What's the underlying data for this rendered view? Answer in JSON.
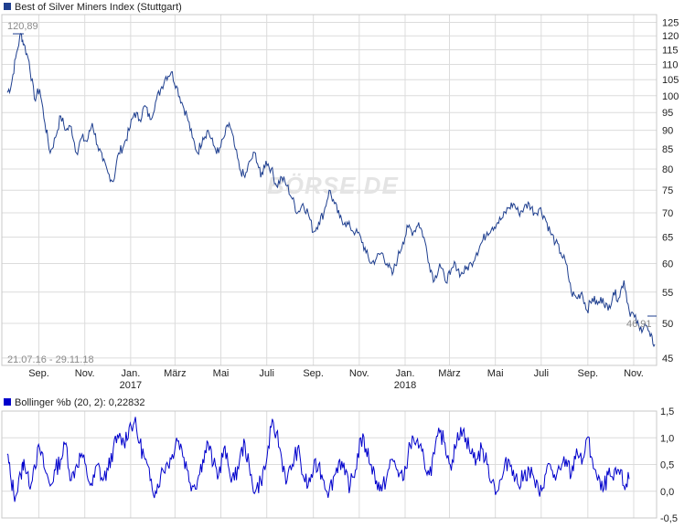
{
  "chart_data": [
    {
      "type": "line",
      "title": "Best of Silver Miners Index (Stuttgart)",
      "legend_color": "#1f3f8f",
      "line_color": "#1f3f8f",
      "range_label": "21.07.16 - 29.11.18",
      "high_label": "120,89",
      "low_label": "46,91",
      "ylim": [
        44,
        128
      ],
      "yticks": [
        45,
        50,
        55,
        60,
        65,
        70,
        75,
        80,
        85,
        90,
        95,
        100,
        105,
        110,
        115,
        120,
        125
      ],
      "y_scale": "log",
      "grid": true,
      "watermark": "BÖRSE.DE",
      "x": [
        "2016-07-21",
        "2016-07-26",
        "2016-08-01",
        "2016-08-08",
        "2016-08-12",
        "2016-08-19",
        "2016-08-26",
        "2016-09-02",
        "2016-09-09",
        "2016-09-16",
        "2016-09-23",
        "2016-09-30",
        "2016-10-07",
        "2016-10-14",
        "2016-10-21",
        "2016-10-28",
        "2016-11-04",
        "2016-11-11",
        "2016-11-18",
        "2016-11-25",
        "2016-12-02",
        "2016-12-09",
        "2016-12-16",
        "2016-12-23",
        "2016-12-30",
        "2017-01-06",
        "2017-01-13",
        "2017-01-20",
        "2017-01-27",
        "2017-02-03",
        "2017-02-10",
        "2017-02-17",
        "2017-02-24",
        "2017-03-03",
        "2017-03-10",
        "2017-03-17",
        "2017-03-24",
        "2017-03-31",
        "2017-04-07",
        "2017-04-14",
        "2017-04-21",
        "2017-04-28",
        "2017-05-05",
        "2017-05-12",
        "2017-05-19",
        "2017-05-26",
        "2017-06-02",
        "2017-06-09",
        "2017-06-16",
        "2017-06-23",
        "2017-06-30",
        "2017-07-07",
        "2017-07-14",
        "2017-07-21",
        "2017-07-28",
        "2017-08-04",
        "2017-08-11",
        "2017-08-18",
        "2017-08-25",
        "2017-09-01",
        "2017-09-08",
        "2017-09-15",
        "2017-09-22",
        "2017-09-29",
        "2017-10-06",
        "2017-10-13",
        "2017-10-20",
        "2017-10-27",
        "2017-11-03",
        "2017-11-10",
        "2017-11-17",
        "2017-11-24",
        "2017-12-01",
        "2017-12-08",
        "2017-12-15",
        "2017-12-22",
        "2017-12-29",
        "2018-01-05",
        "2018-01-12",
        "2018-01-19",
        "2018-01-26",
        "2018-02-02",
        "2018-02-09",
        "2018-02-16",
        "2018-02-23",
        "2018-03-02",
        "2018-03-09",
        "2018-03-16",
        "2018-03-23",
        "2018-03-30",
        "2018-04-06",
        "2018-04-13",
        "2018-04-20",
        "2018-04-27",
        "2018-05-04",
        "2018-05-11",
        "2018-05-18",
        "2018-05-25",
        "2018-06-01",
        "2018-06-08",
        "2018-06-15",
        "2018-06-22",
        "2018-06-29",
        "2018-07-06",
        "2018-07-13",
        "2018-07-20",
        "2018-07-27",
        "2018-08-03",
        "2018-08-10",
        "2018-08-17",
        "2018-08-24",
        "2018-08-31",
        "2018-09-07",
        "2018-09-14",
        "2018-09-21",
        "2018-09-28",
        "2018-10-05",
        "2018-10-12",
        "2018-10-19",
        "2018-10-26",
        "2018-11-02",
        "2018-11-09",
        "2018-11-16",
        "2018-11-23",
        "2018-11-29"
      ],
      "values": [
        101,
        103,
        112,
        120.89,
        117,
        111,
        99,
        102,
        92,
        84,
        88,
        94,
        90,
        91,
        84,
        88,
        87,
        92,
        86,
        82,
        79,
        77,
        84,
        86,
        90,
        95,
        93,
        97,
        93,
        98,
        102,
        106,
        107.5,
        103,
        98,
        94,
        88,
        84,
        88,
        90,
        86,
        84,
        88,
        92,
        86,
        80,
        78,
        82,
        84,
        78,
        82,
        80,
        76,
        78,
        76,
        73,
        70,
        72,
        70,
        66,
        68,
        70,
        75,
        72,
        69,
        68,
        67,
        66,
        65,
        62,
        60,
        61,
        62,
        60,
        58,
        61,
        64,
        67,
        66,
        68,
        65,
        60,
        57,
        60,
        57,
        58,
        60,
        58,
        59,
        60,
        62,
        64,
        66,
        67,
        68,
        69,
        71,
        72,
        70,
        71,
        72,
        70,
        71,
        69,
        66,
        64,
        62,
        60,
        55,
        54,
        55,
        52,
        54,
        53,
        54,
        52,
        55,
        54,
        57,
        52,
        51,
        49,
        50,
        48,
        46.91
      ]
    },
    {
      "type": "line",
      "title": "Bollinger %b (20, 2): 0,22832",
      "legend_color": "#0000cc",
      "line_color": "#0000cc",
      "ylim": [
        -0.5,
        1.5
      ],
      "yticks": [
        -0.5,
        0.0,
        0.5,
        1.0,
        1.5
      ],
      "ytick_labels": [
        "-0,5",
        "0,0",
        "0,5",
        "1,0",
        "1,5"
      ],
      "grid": true,
      "x_tick_labels": [
        "Sep.",
        "Nov.",
        "Jan.",
        "März",
        "Mai",
        "Juli",
        "Sep.",
        "Nov.",
        "Jan.",
        "März",
        "Mai",
        "Juli",
        "Sep.",
        "Nov."
      ],
      "x_tick_dates": [
        "2016-09-01",
        "2016-11-01",
        "2017-01-01",
        "2017-03-01",
        "2017-05-01",
        "2017-07-01",
        "2017-09-01",
        "2017-11-01",
        "2018-01-01",
        "2018-03-01",
        "2018-05-01",
        "2018-07-01",
        "2018-09-01",
        "2018-11-01"
      ],
      "x_year_labels": [
        "2017",
        "2018"
      ],
      "x_year_dates": [
        "2017-01-01",
        "2018-01-01"
      ],
      "values": [
        0.7,
        0.2,
        -0.1,
        0.3,
        0.6,
        0.1,
        0.5,
        0.8,
        0.4,
        0.1,
        0.4,
        0.6,
        0.9,
        0.2,
        0.5,
        0.7,
        0.3,
        0.1,
        0.5,
        0.2,
        0.4,
        0.8,
        1.0,
        0.9,
        1.2,
        1.3,
        0.9,
        0.6,
        0.2,
        0.0,
        0.3,
        0.5,
        0.6,
        1.0,
        0.8,
        0.4,
        0.1,
        0.2,
        0.6,
        0.9,
        0.5,
        0.3,
        0.8,
        0.4,
        0.2,
        0.6,
        0.9,
        0.3,
        0.0,
        0.2,
        0.5,
        1.2,
        1.1,
        0.6,
        0.2,
        0.5,
        0.8,
        0.3,
        0.1,
        0.4,
        0.5,
        0.2,
        0.0,
        0.3,
        0.6,
        0.3,
        0.1,
        0.4,
        1.0,
        0.8,
        0.5,
        0.2,
        0.0,
        0.3,
        0.6,
        0.4,
        0.2,
        0.7,
        1.0,
        0.8,
        0.6,
        0.3,
        0.7,
        1.1,
        0.9,
        0.5,
        0.8,
        1.2,
        1.0,
        0.7,
        0.6,
        0.8,
        0.5,
        0.2,
        0.0,
        0.3,
        0.6,
        0.4,
        0.1,
        0.3,
        0.4,
        0.2,
        -0.1,
        0.3,
        0.5,
        0.2,
        0.4,
        0.6,
        0.3,
        0.8,
        0.5,
        1.0,
        0.6,
        0.2,
        0.0,
        0.3,
        0.2,
        0.4,
        0.1,
        0.22832
      ]
    }
  ]
}
